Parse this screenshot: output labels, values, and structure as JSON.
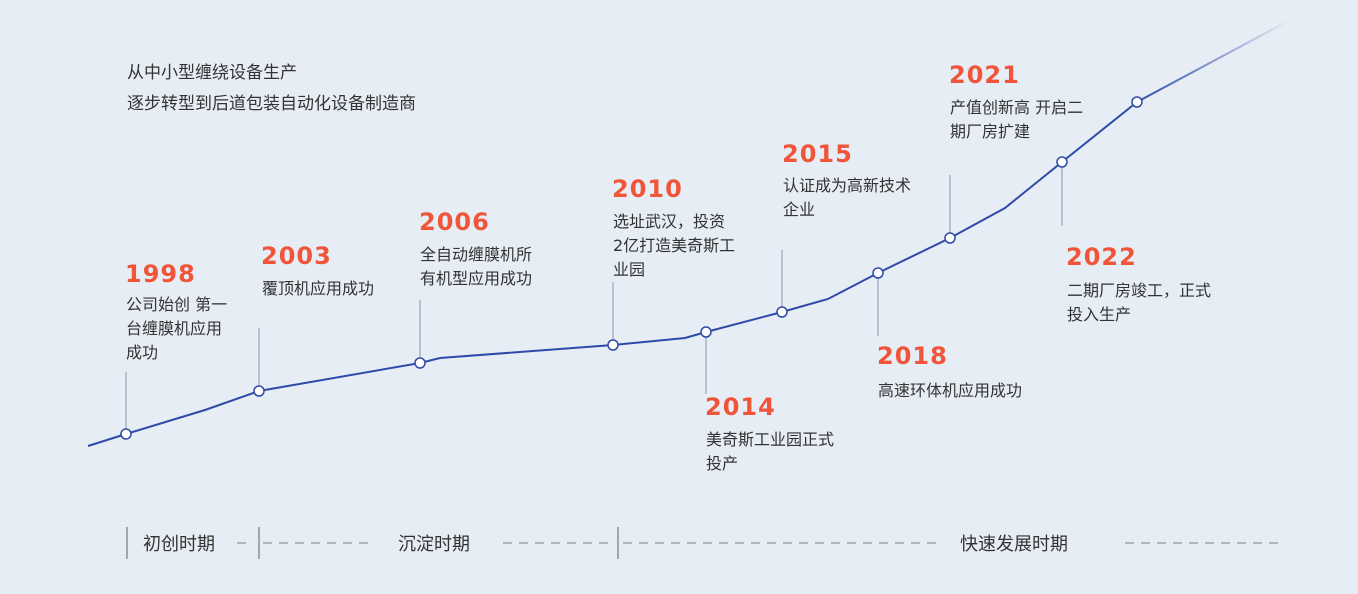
{
  "intro": {
    "line1": "从中小型缠绕设备生产",
    "line2": "逐步转型到后道包装自动化设备制造商"
  },
  "colors": {
    "line": "#2f4aa8",
    "year": "#f0553a",
    "background": "#e6edf5",
    "marker_stem": "#a9b2c3"
  },
  "milestones": [
    {
      "year": "1998",
      "text": "公司始创 第一\n台缠膜机应用\n成功"
    },
    {
      "year": "2003",
      "text": "覆顶机应用成功"
    },
    {
      "year": "2006",
      "text": "全自动缠膜机所\n有机型应用成功"
    },
    {
      "year": "2010",
      "text": "选址武汉，投资\n2亿打造美奇斯工\n业园"
    },
    {
      "year": "2014",
      "text": "美奇斯工业园正式\n投产"
    },
    {
      "year": "2015",
      "text": "认证成为高新技术\n企业"
    },
    {
      "year": "2018",
      "text": "高速环体机应用成功"
    },
    {
      "year": "2021",
      "text": "产值创新高 开启二\n期厂房扩建"
    },
    {
      "year": "2022",
      "text": "二期厂房竣工，正式\n投入生产"
    }
  ],
  "periods": [
    {
      "label": "初创时期"
    },
    {
      "label": "沉淀时期"
    },
    {
      "label": "快速发展时期"
    }
  ]
}
